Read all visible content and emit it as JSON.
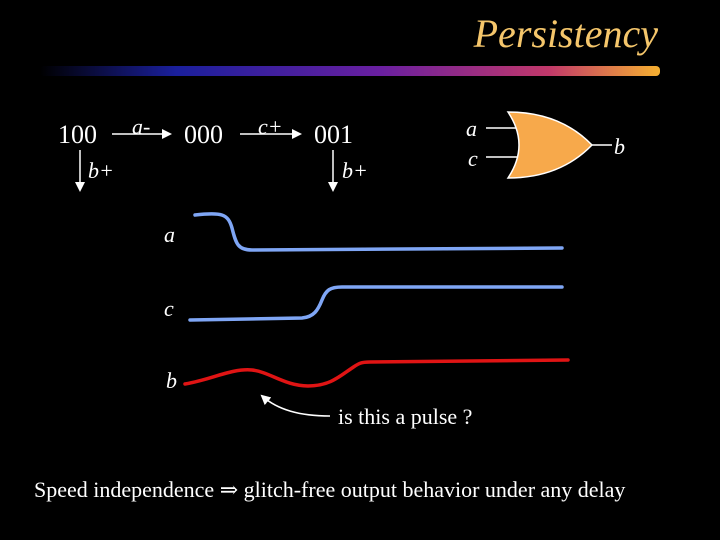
{
  "title": "Persistency",
  "states": {
    "s1": "100",
    "s2": "000",
    "s3": "001"
  },
  "transitions": {
    "t1": "a-",
    "t2": "c+",
    "b1": "b+",
    "b2": "b+"
  },
  "gate": {
    "input_a": "a",
    "input_c": "c",
    "output_b": "b"
  },
  "waveforms": {
    "label_a": "a",
    "label_c": "c",
    "label_b": "b"
  },
  "annotation": "is this a pulse ?",
  "footer": "Speed independence ⇒ glitch-free output behavior under any delay",
  "colors": {
    "title": "#f5c66b",
    "gate_fill": "#f7a94b",
    "wave_blue": "#7fa6f5",
    "wave_red": "#e01414"
  }
}
